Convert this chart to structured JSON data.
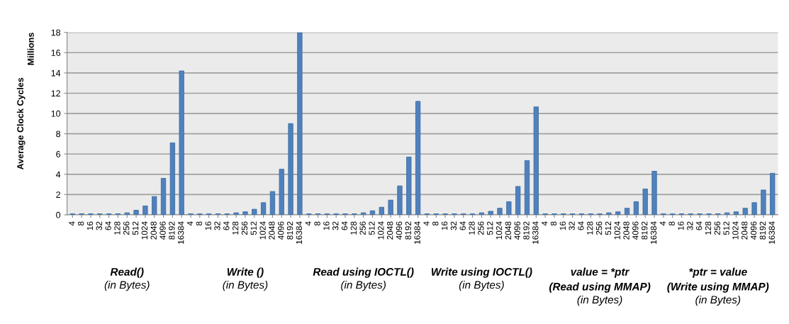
{
  "chart_data": {
    "type": "bar",
    "ylabel": "Average Clock Cycles",
    "categories": [
      "4",
      "8",
      "16",
      "32",
      "64",
      "128",
      "256",
      "512",
      "1024",
      "2048",
      "4096",
      "8192",
      "16384",
      "4",
      "8",
      "16",
      "32",
      "64",
      "128",
      "256",
      "512",
      "1024",
      "2048",
      "4096",
      "8192",
      "16384",
      "4",
      "8",
      "16",
      "32",
      "64",
      "128",
      "256",
      "512",
      "1024",
      "2048",
      "4096",
      "8192",
      "16384",
      "4",
      "8",
      "16",
      "32",
      "64",
      "128",
      "256",
      "512",
      "1024",
      "2048",
      "4096",
      "8192",
      "16384",
      "4",
      "8",
      "16",
      "32",
      "64",
      "128",
      "256",
      "512",
      "1024",
      "2048",
      "4096",
      "8192",
      "16384",
      "4",
      "8",
      "16",
      "32",
      "64",
      "128",
      "256",
      "512",
      "1024",
      "2048",
      "4096",
      "8192",
      "16384"
    ],
    "values": [
      0.1,
      0.1,
      0.1,
      0.1,
      0.1,
      0.1,
      0.2,
      0.45,
      0.88,
      1.8,
      3.6,
      7.1,
      14.2,
      0.1,
      0.1,
      0.1,
      0.1,
      0.1,
      0.2,
      0.3,
      0.55,
      1.2,
      2.3,
      4.5,
      9.0,
      18,
      0.1,
      0.1,
      0.1,
      0.1,
      0.1,
      0.1,
      0.2,
      0.4,
      0.75,
      1.45,
      2.85,
      5.7,
      11.2,
      0.1,
      0.1,
      0.1,
      0.1,
      0.1,
      0.1,
      0.2,
      0.35,
      0.65,
      1.3,
      2.8,
      5.35,
      10.65,
      0.1,
      0.1,
      0.1,
      0.1,
      0.1,
      0.1,
      0.1,
      0.2,
      0.3,
      0.65,
      1.3,
      2.55,
      4.3,
      0.1,
      0.1,
      0.1,
      0.1,
      0.1,
      0.1,
      0.1,
      0.2,
      0.3,
      0.65,
      1.2,
      2.45,
      4.1
    ],
    "color": "#4f81bd",
    "ylim": [
      0,
      18
    ],
    "yticks": [
      0,
      2,
      4,
      6,
      8,
      10,
      12,
      14,
      16,
      18
    ],
    "grid": "y",
    "annotations": [
      "Read()",
      "(in Bytes)",
      "Write ()",
      "(in Bytes)",
      "Read using IOCTL()",
      "(in Bytes)",
      "Write using IOCTL()",
      "(in Bytes)",
      "value = *ptr\n(Read using MMAP)",
      "(in Bytes)",
      "*ptr = value\n(Write using MMAP)",
      "(in Bytes)",
      "Millions"
    ]
  }
}
